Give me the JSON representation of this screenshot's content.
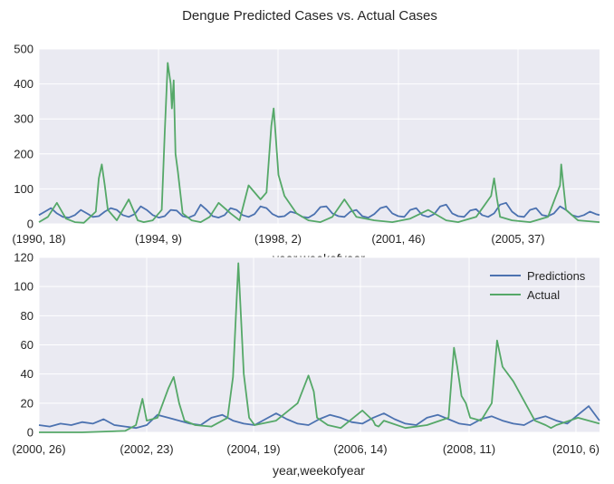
{
  "figure": {
    "title": "Dengue Predicted Cases vs. Actual Cases"
  },
  "colors": {
    "background": "#EAEAF2",
    "grid": "#FFFFFF",
    "predictions": "#4C72B0",
    "actual": "#55A868",
    "text": "#262626"
  },
  "chart_data": [
    {
      "type": "line",
      "grid": true,
      "xlabel": "year,weekofyear",
      "ylabel": "",
      "ylim": [
        0,
        500
      ],
      "yticks": [
        0,
        100,
        200,
        300,
        400,
        500
      ],
      "xticks": [
        "(1990, 18)",
        "(1994, 9)",
        "(1998, 2)",
        "(2001, 46)",
        "(2005, 37)"
      ],
      "x_range": [
        "(1990, 18)",
        "(2008, 17)"
      ],
      "series": [
        {
          "name": "Predictions",
          "x": [
            0,
            10,
            20,
            30,
            40,
            50,
            60,
            70,
            80,
            90,
            100,
            110,
            120,
            130,
            140,
            150,
            160,
            170,
            180,
            190,
            200,
            210,
            220,
            230,
            240,
            250,
            260,
            270,
            280,
            290,
            300,
            310,
            320,
            330,
            340,
            350,
            360,
            370,
            380,
            390,
            400,
            410,
            420,
            430,
            440,
            450,
            460,
            470,
            480,
            490,
            500,
            510,
            520,
            530,
            540,
            550,
            560,
            570,
            580,
            590,
            600,
            610,
            620,
            630,
            640,
            650,
            660,
            670,
            680,
            690,
            700,
            710,
            720,
            730,
            740,
            750,
            760,
            770,
            780,
            790,
            800,
            810,
            820,
            830,
            840,
            850,
            860,
            870,
            880,
            890,
            900,
            910,
            920,
            930,
            936
          ],
          "values": [
            25,
            35,
            45,
            30,
            20,
            18,
            25,
            40,
            30,
            20,
            22,
            35,
            45,
            40,
            25,
            20,
            28,
            50,
            40,
            25,
            18,
            22,
            40,
            38,
            22,
            18,
            25,
            55,
            40,
            22,
            18,
            25,
            45,
            40,
            25,
            20,
            28,
            50,
            45,
            28,
            20,
            22,
            35,
            30,
            20,
            18,
            28,
            48,
            50,
            30,
            22,
            20,
            35,
            40,
            22,
            18,
            28,
            45,
            50,
            30,
            22,
            20,
            40,
            45,
            25,
            20,
            28,
            50,
            55,
            30,
            22,
            20,
            38,
            42,
            25,
            20,
            30,
            55,
            60,
            35,
            22,
            20,
            40,
            45,
            25,
            22,
            30,
            50,
            40,
            25,
            20,
            25,
            35,
            28,
            25
          ]
        },
        {
          "name": "Actual",
          "x": [
            0,
            15,
            30,
            45,
            60,
            75,
            95,
            100,
            105,
            110,
            115,
            130,
            150,
            160,
            165,
            175,
            190,
            205,
            210,
            215,
            220,
            222,
            225,
            228,
            232,
            240,
            255,
            270,
            285,
            300,
            320,
            335,
            350,
            370,
            380,
            388,
            392,
            395,
            400,
            410,
            430,
            450,
            470,
            490,
            510,
            530,
            560,
            590,
            620,
            650,
            680,
            700,
            730,
            755,
            760,
            765,
            770,
            790,
            820,
            850,
            870,
            872,
            875,
            880,
            900,
            936
          ],
          "values": [
            5,
            20,
            60,
            15,
            5,
            3,
            35,
            130,
            170,
            110,
            40,
            10,
            70,
            30,
            10,
            5,
            10,
            40,
            260,
            460,
            400,
            330,
            410,
            200,
            150,
            30,
            10,
            5,
            20,
            60,
            30,
            10,
            110,
            70,
            90,
            280,
            330,
            260,
            140,
            80,
            30,
            10,
            5,
            20,
            70,
            20,
            10,
            5,
            15,
            40,
            10,
            5,
            20,
            80,
            130,
            70,
            20,
            10,
            5,
            20,
            110,
            170,
            120,
            40,
            10,
            5
          ]
        }
      ]
    },
    {
      "type": "line",
      "grid": true,
      "xlabel": "year,weekofyear",
      "ylabel": "",
      "ylim": [
        0,
        120
      ],
      "yticks": [
        0,
        20,
        40,
        60,
        80,
        100,
        120
      ],
      "xticks": [
        "(2000, 26)",
        "(2002, 23)",
        "(2004, 19)",
        "(2006, 14)",
        "(2008, 11)",
        "(2010, 6)"
      ],
      "x_range": [
        "(2000, 26)",
        "(2010, 25)"
      ],
      "legend": {
        "position": "upper right",
        "entries": [
          "Predictions",
          "Actual"
        ]
      },
      "series": [
        {
          "name": "Predictions",
          "x": [
            0,
            10,
            20,
            30,
            40,
            50,
            60,
            70,
            80,
            90,
            100,
            110,
            120,
            130,
            140,
            150,
            160,
            170,
            180,
            190,
            200,
            210,
            220,
            230,
            240,
            250,
            260,
            270,
            280,
            290,
            300,
            310,
            320,
            330,
            340,
            350,
            360,
            370,
            380,
            390,
            400,
            410,
            420,
            430,
            440,
            450,
            460,
            470,
            480,
            490,
            500,
            510,
            520
          ],
          "values": [
            5,
            4,
            6,
            5,
            7,
            6,
            9,
            5,
            4,
            3,
            5,
            12,
            10,
            8,
            6,
            5,
            10,
            12,
            8,
            6,
            5,
            9,
            13,
            9,
            6,
            5,
            9,
            12,
            10,
            7,
            6,
            10,
            13,
            9,
            6,
            5,
            10,
            12,
            9,
            6,
            5,
            9,
            11,
            8,
            6,
            5,
            9,
            11,
            8,
            6,
            12,
            18,
            8
          ]
        },
        {
          "name": "Actual",
          "x": [
            0,
            40,
            80,
            90,
            96,
            100,
            110,
            120,
            125,
            130,
            135,
            145,
            160,
            175,
            180,
            185,
            190,
            195,
            200,
            220,
            240,
            250,
            255,
            258,
            262,
            268,
            280,
            300,
            310,
            312,
            315,
            320,
            340,
            360,
            380,
            385,
            388,
            392,
            396,
            400,
            410,
            420,
            425,
            430,
            440,
            460,
            470,
            475,
            480,
            500,
            510,
            520
          ],
          "values": [
            0,
            0,
            1,
            5,
            23,
            8,
            10,
            30,
            38,
            20,
            8,
            5,
            4,
            10,
            38,
            116,
            40,
            10,
            5,
            8,
            20,
            39,
            28,
            10,
            8,
            5,
            3,
            15,
            8,
            5,
            4,
            8,
            3,
            5,
            10,
            58,
            45,
            25,
            20,
            10,
            8,
            20,
            63,
            45,
            35,
            8,
            5,
            3,
            5,
            10,
            8,
            6
          ]
        }
      ]
    }
  ]
}
